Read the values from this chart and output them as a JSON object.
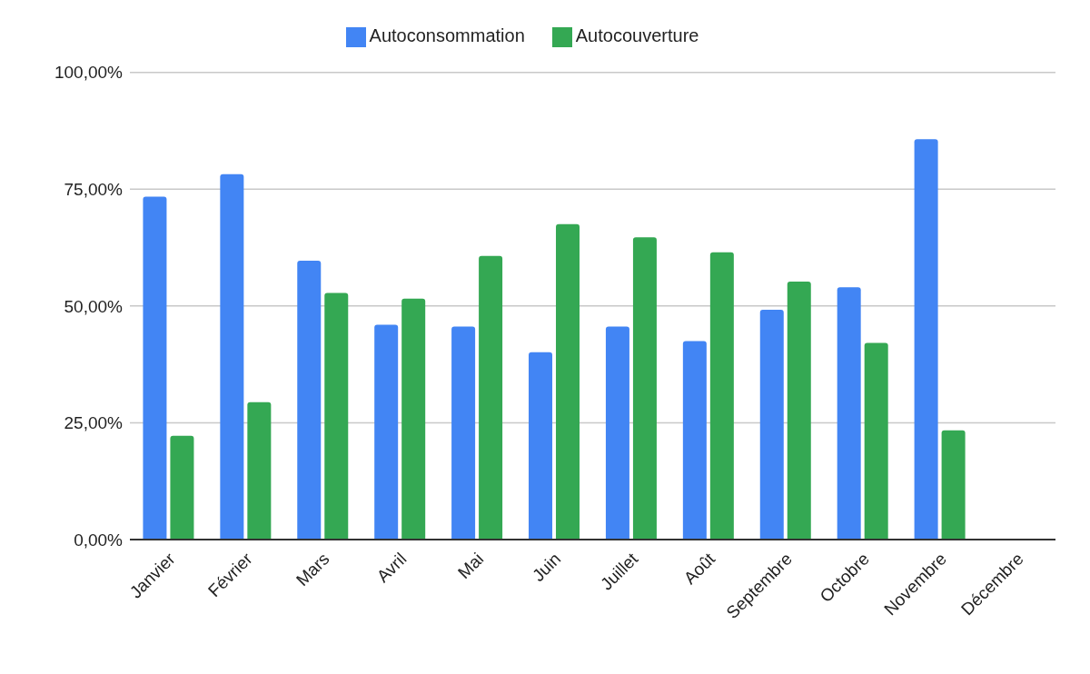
{
  "chart_data": {
    "type": "bar",
    "categories": [
      "Janvier",
      "Février",
      "Mars",
      "Avril",
      "Mai",
      "Juin",
      "Juillet",
      "Août",
      "Septembre",
      "Octobre",
      "Novembre",
      "Décembre"
    ],
    "series": [
      {
        "name": "Autoconsommation",
        "color": "#4285f4",
        "values": [
          73.4,
          78.2,
          59.7,
          46.0,
          45.6,
          40.1,
          45.6,
          42.5,
          49.2,
          54.0,
          85.7,
          null
        ]
      },
      {
        "name": "Autocouverture",
        "color": "#34a853",
        "values": [
          22.2,
          29.4,
          52.8,
          51.6,
          60.7,
          67.5,
          64.7,
          61.5,
          55.2,
          42.1,
          23.4,
          null
        ]
      }
    ],
    "ylim": [
      0,
      100
    ],
    "yticks": [
      {
        "value": 0,
        "label": "0,00%"
      },
      {
        "value": 25,
        "label": "25,00%"
      },
      {
        "value": 50,
        "label": "50,00%"
      },
      {
        "value": 75,
        "label": "75,00%"
      },
      {
        "value": 100,
        "label": "100,00%"
      }
    ],
    "grid": "y",
    "legend": "top"
  }
}
